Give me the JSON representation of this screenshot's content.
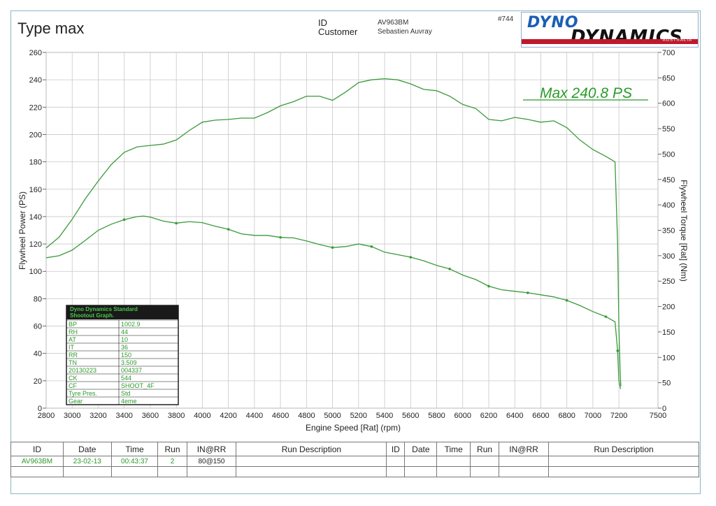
{
  "header": {
    "title": "Type max",
    "id_label": "ID",
    "id_value": "AV963BM",
    "customer_label": "Customer",
    "customer_value": "Sebastien Auvray",
    "run_no": "#744"
  },
  "logo": {
    "top_text": "DYNO",
    "bottom_text": "DYNAMICS",
    "sub_text": "AUSTRALIA"
  },
  "max_annotation": "Max 240.8 PS",
  "chart_data": {
    "type": "line",
    "xlabel": "Engine Speed [Rat] (rpm)",
    "ylabel": "Flywheel Power (PS)",
    "y2label": "Flywheel Torque [Rat] (Nm)",
    "xlim": [
      2800,
      7500
    ],
    "ylim": [
      0,
      260
    ],
    "y2lim": [
      0,
      700
    ],
    "x_ticks": [
      2800,
      3000,
      3200,
      3400,
      3600,
      3800,
      4000,
      4200,
      4400,
      4600,
      4800,
      5000,
      5200,
      5400,
      5600,
      5800,
      6000,
      6200,
      6400,
      6600,
      6800,
      7000,
      7200,
      7500
    ],
    "y_ticks": [
      0,
      20,
      40,
      60,
      80,
      100,
      120,
      140,
      160,
      180,
      200,
      220,
      240,
      260
    ],
    "y2_ticks": [
      0,
      50,
      100,
      150,
      200,
      250,
      300,
      350,
      400,
      450,
      500,
      550,
      600,
      650,
      700
    ],
    "grid": true,
    "color": "#3a9a3a",
    "series": [
      {
        "x": [
          2800,
          2900,
          3000,
          3100,
          3200,
          3300,
          3400,
          3500,
          3550,
          3600,
          3700,
          3800,
          3900,
          4000,
          4100,
          4200,
          4300,
          4400,
          4500,
          4600,
          4700,
          4800,
          4900,
          5000,
          5100,
          5200,
          5300,
          5400,
          5500,
          5600,
          5700,
          5800,
          5900,
          6000,
          6100,
          6200,
          6300,
          6400,
          6500,
          6600,
          6700,
          6800,
          6900,
          7000,
          7100,
          7170,
          7190,
          7200,
          7210,
          7215
        ],
        "y": [
          117,
          125,
          138,
          153,
          166,
          178,
          187,
          191,
          191.5,
          192,
          193,
          196,
          203,
          209,
          210.5,
          211,
          212,
          212,
          216,
          221,
          224,
          228,
          228,
          225,
          231,
          238,
          240,
          240.8,
          240,
          237,
          233,
          232,
          228,
          222,
          219,
          211,
          210,
          212.5,
          211,
          209,
          210,
          205,
          196,
          189,
          184,
          180,
          120,
          60,
          25,
          16
        ]
      },
      {
        "x": [
          2800,
          2900,
          3000,
          3100,
          3200,
          3300,
          3400,
          3500,
          3550,
          3600,
          3700,
          3800,
          3900,
          4000,
          4100,
          4200,
          4300,
          4400,
          4500,
          4600,
          4700,
          4800,
          4900,
          5000,
          5100,
          5200,
          5300,
          5400,
          5500,
          5600,
          5700,
          5800,
          5900,
          6000,
          6100,
          6200,
          6300,
          6400,
          6500,
          6600,
          6700,
          6800,
          6900,
          7000,
          7100,
          7170,
          7190,
          7200,
          7210,
          7215
        ],
        "y": [
          296,
          300,
          311,
          330,
          350,
          362,
          371,
          377,
          378,
          376,
          368,
          364,
          367,
          365,
          358,
          352,
          343,
          340,
          340,
          336,
          335,
          329,
          322,
          316,
          318,
          323,
          318,
          307,
          302,
          297,
          290,
          281,
          274,
          262,
          253,
          240,
          233,
          230,
          227,
          223,
          219,
          212,
          202,
          190,
          180,
          170,
          113,
          55,
          40,
          38
        ]
      }
    ]
  },
  "spec_box": {
    "title_line1": "Dyno Dynamics Standard",
    "title_line2": "Shootout Graph.",
    "rows": [
      [
        "BP",
        "1002.9"
      ],
      [
        "RH",
        "44"
      ],
      [
        "AT",
        "10"
      ],
      [
        "IT",
        "36"
      ],
      [
        "RR",
        "150"
      ],
      [
        "TN",
        "3.509"
      ],
      [
        "20130223",
        "004337"
      ],
      [
        "CK",
        "544"
      ],
      [
        "CF",
        "SHOOT_4F"
      ],
      [
        "Tyre Pres.",
        "Std"
      ],
      [
        "Gear",
        "4eme"
      ]
    ]
  },
  "run_table": {
    "headers": [
      "ID",
      "Date",
      "Time",
      "Run",
      "IN@RR",
      "Run Description",
      "ID",
      "Date",
      "Time",
      "Run",
      "IN@RR",
      "Run Description"
    ],
    "rows": [
      [
        "AV963BM",
        "23-02-13",
        "00:43:37",
        "2",
        "80@150",
        "",
        "",
        "",
        "",
        "",
        "",
        ""
      ],
      [
        "",
        "",
        "",
        "",
        "",
        "",
        "",
        "",
        "",
        "",
        "",
        ""
      ]
    ]
  }
}
